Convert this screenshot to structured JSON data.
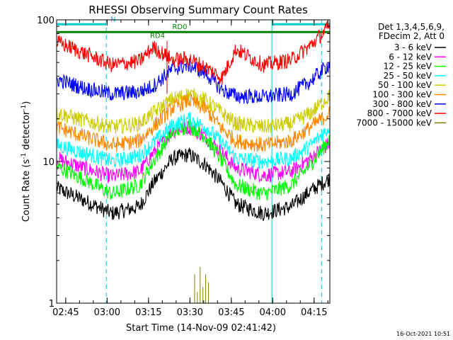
{
  "chart_data": {
    "type": "line",
    "title": "RHESSI Observing Summary Count Rates",
    "xlabel": "Start Time (14-Nov-09 02:41:42)",
    "ylabel": "Count Rate (s",
    "ylabel_sup": "-1",
    "ylabel_tail": " detector",
    "ylabel_end": ")",
    "yscale": "log",
    "ylim": [
      1,
      100
    ],
    "xlim_minutes": [
      0,
      99
    ],
    "y_ticks": [
      {
        "v": 1,
        "label": "1"
      },
      {
        "v": 10,
        "label": "10"
      },
      {
        "v": 100,
        "label": "100"
      }
    ],
    "x_ticks": [
      {
        "m": 3.3,
        "label": "02:45"
      },
      {
        "m": 18.3,
        "label": "03:00"
      },
      {
        "m": 33.3,
        "label": "03:15"
      },
      {
        "m": 48.3,
        "label": "03:30"
      },
      {
        "m": 63.3,
        "label": "03:45"
      },
      {
        "m": 78.3,
        "label": "04:00"
      },
      {
        "m": 93.3,
        "label": "04:15"
      }
    ],
    "legend_header": [
      "Det 1,3,4,5,6,9,",
      "FDecim 2, Att 0"
    ],
    "series": [
      {
        "name": "3 - 6 keV",
        "color": "#000000",
        "points": [
          [
            0,
            6.5
          ],
          [
            10,
            5.3
          ],
          [
            20,
            4.3
          ],
          [
            30,
            4.8
          ],
          [
            35,
            7.0
          ],
          [
            42,
            10.5
          ],
          [
            48,
            11.2
          ],
          [
            54,
            9.5
          ],
          [
            60,
            7.0
          ],
          [
            65,
            5.0
          ],
          [
            75,
            4.3
          ],
          [
            85,
            4.8
          ],
          [
            92,
            6.2
          ],
          [
            99,
            7.6
          ]
        ]
      },
      {
        "name": "6 - 12 keV",
        "color": "#ff00ff",
        "points": [
          [
            0,
            10.5
          ],
          [
            10,
            9.0
          ],
          [
            20,
            7.8
          ],
          [
            30,
            8.5
          ],
          [
            35,
            11.5
          ],
          [
            42,
            16.5
          ],
          [
            48,
            17.5
          ],
          [
            54,
            15.0
          ],
          [
            60,
            11.5
          ],
          [
            65,
            9.0
          ],
          [
            75,
            8.0
          ],
          [
            85,
            8.5
          ],
          [
            92,
            10.5
          ],
          [
            99,
            13.5
          ]
        ]
      },
      {
        "name": "12 - 25 keV",
        "color": "#00ff00",
        "points": [
          [
            0,
            9.2
          ],
          [
            10,
            7.5
          ],
          [
            20,
            5.9
          ],
          [
            30,
            6.8
          ],
          [
            35,
            10.0
          ],
          [
            42,
            16.0
          ],
          [
            48,
            18.0
          ],
          [
            54,
            15.0
          ],
          [
            60,
            10.0
          ],
          [
            65,
            6.8
          ],
          [
            75,
            5.9
          ],
          [
            85,
            6.8
          ],
          [
            92,
            9.5
          ],
          [
            99,
            14.5
          ]
        ]
      },
      {
        "name": "25 - 50 keV",
        "color": "#00ffff",
        "points": [
          [
            0,
            13.0
          ],
          [
            10,
            11.5
          ],
          [
            20,
            10.0
          ],
          [
            30,
            11.0
          ],
          [
            35,
            13.5
          ],
          [
            42,
            18.0
          ],
          [
            48,
            20.0
          ],
          [
            54,
            17.5
          ],
          [
            60,
            13.5
          ],
          [
            65,
            10.5
          ],
          [
            75,
            10.0
          ],
          [
            85,
            10.5
          ],
          [
            92,
            13.0
          ],
          [
            99,
            17.5
          ]
        ]
      },
      {
        "name": "50 - 100 keV",
        "color": "#cccc00",
        "points": [
          [
            0,
            22.0
          ],
          [
            10,
            19.5
          ],
          [
            20,
            17.5
          ],
          [
            30,
            18.5
          ],
          [
            35,
            22.0
          ],
          [
            42,
            27.5
          ],
          [
            48,
            30.0
          ],
          [
            54,
            27.0
          ],
          [
            60,
            22.0
          ],
          [
            65,
            18.5
          ],
          [
            75,
            17.5
          ],
          [
            85,
            18.5
          ],
          [
            92,
            22.0
          ],
          [
            99,
            29.0
          ]
        ]
      },
      {
        "name": "100 - 300 keV",
        "color": "#ff8800",
        "points": [
          [
            0,
            17.5
          ],
          [
            10,
            15.0
          ],
          [
            20,
            13.0
          ],
          [
            30,
            14.0
          ],
          [
            35,
            17.5
          ],
          [
            42,
            24.0
          ],
          [
            48,
            27.0
          ],
          [
            54,
            23.5
          ],
          [
            60,
            17.0
          ],
          [
            65,
            14.0
          ],
          [
            75,
            13.0
          ],
          [
            85,
            14.0
          ],
          [
            92,
            17.5
          ],
          [
            99,
            22.0
          ]
        ]
      },
      {
        "name": "300 - 800 keV",
        "color": "#0000ff",
        "points": [
          [
            0,
            38.0
          ],
          [
            10,
            33.0
          ],
          [
            20,
            30.0
          ],
          [
            30,
            31.0
          ],
          [
            35,
            34.0
          ],
          [
            42,
            45.0
          ],
          [
            48,
            48.0
          ],
          [
            54,
            42.0
          ],
          [
            60,
            32.0
          ],
          [
            65,
            29.0
          ],
          [
            75,
            28.5
          ],
          [
            85,
            30.0
          ],
          [
            92,
            37.0
          ],
          [
            99,
            49.0
          ]
        ]
      },
      {
        "name": "800 - 7000 keV",
        "color": "#ff0000",
        "points": [
          [
            0,
            70.0
          ],
          [
            10,
            58.0
          ],
          [
            20,
            48.0
          ],
          [
            30,
            51.0
          ],
          [
            35,
            64.0
          ],
          [
            42,
            52.0
          ],
          [
            48,
            53.0
          ],
          [
            54,
            46.0
          ],
          [
            60,
            39.0
          ],
          [
            65,
            62.0
          ],
          [
            75,
            48.0
          ],
          [
            85,
            52.0
          ],
          [
            92,
            66.0
          ],
          [
            99,
            90.0
          ]
        ]
      },
      {
        "name": "7000 - 15000 keV",
        "color": "#808000",
        "points": [
          [
            50,
            1.6
          ],
          [
            51,
            1.2
          ],
          [
            52,
            1.8
          ],
          [
            53,
            1.3
          ],
          [
            54,
            1.6
          ],
          [
            55,
            1.4
          ]
        ]
      }
    ],
    "annotations": [
      {
        "label": "N",
        "color": "#00cccc",
        "start": 0,
        "end": 18,
        "y": 93
      },
      {
        "label": "",
        "color": "#00cccc",
        "start": 78,
        "end": 99,
        "y": 93
      },
      {
        "label": "RD0",
        "color": "#008000",
        "start": 0,
        "end": 65,
        "y": 82
      },
      {
        "label": "",
        "color": "#008000",
        "start": 65,
        "end": 99,
        "y": 82
      },
      {
        "label": "RD4",
        "color": "#008000",
        "start": 40,
        "end": 40,
        "y": 71
      }
    ],
    "vlines": [
      {
        "m": 0,
        "style": "solid"
      },
      {
        "m": 18,
        "style": "dashed"
      },
      {
        "m": 78,
        "style": "solid"
      },
      {
        "m": 96,
        "style": "dashed"
      }
    ]
  },
  "footer": {
    "date_stamp": "16-Oct-2021 10:51"
  }
}
